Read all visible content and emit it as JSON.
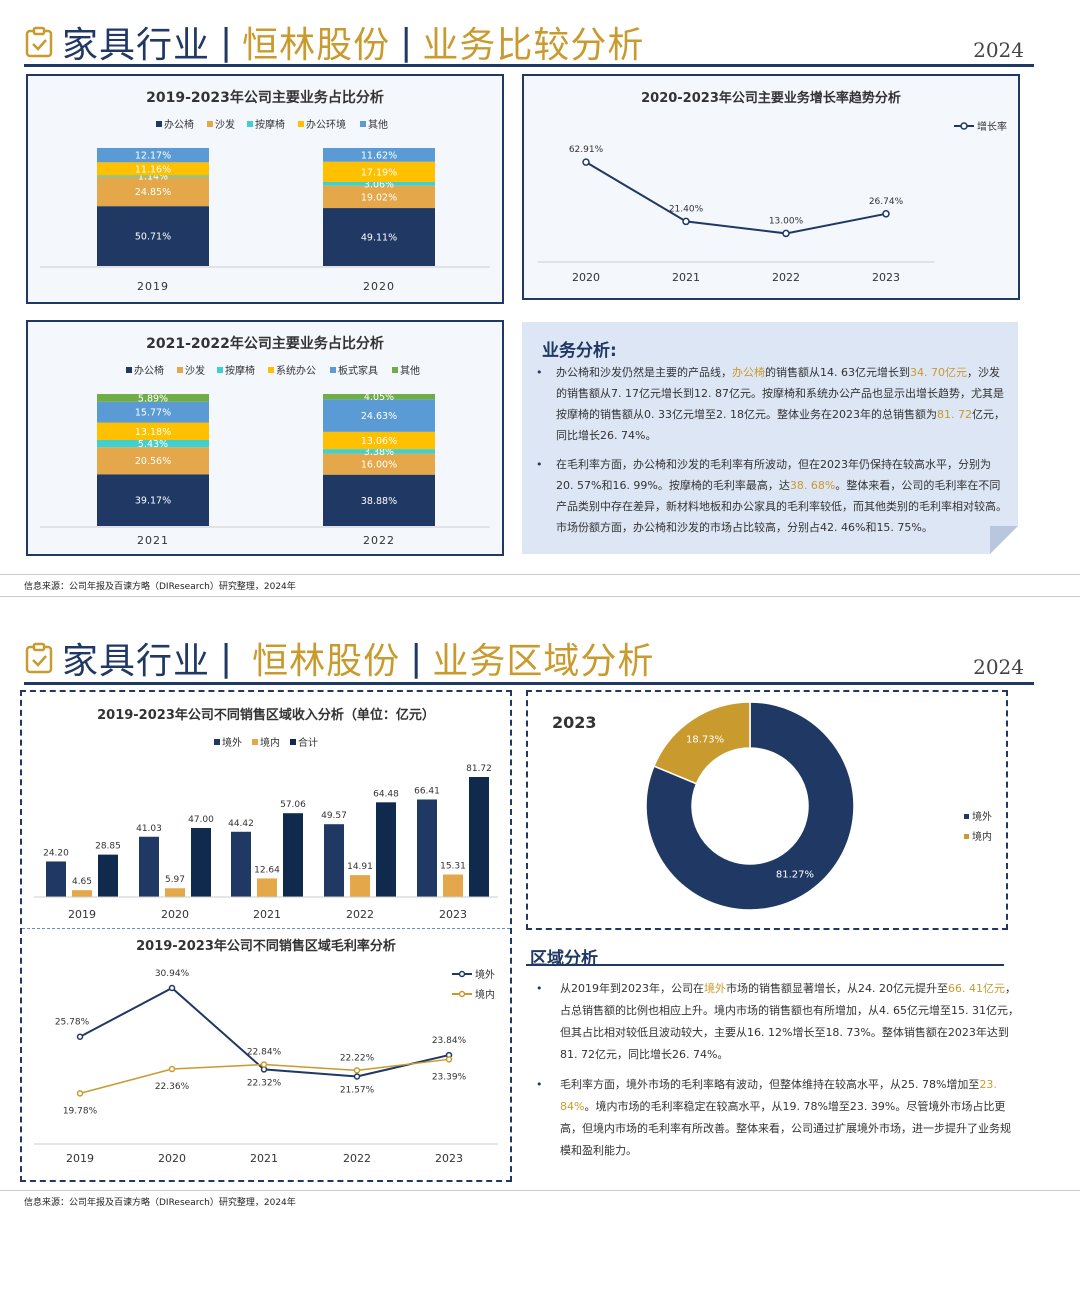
{
  "page1": {
    "title_main": "家具行业",
    "title_sep1": "|",
    "title_company": "恒林股份",
    "title_sep2": "|",
    "title_topic": "业务比较分析",
    "year": "2024"
  },
  "page2": {
    "title_main": "家具行业",
    "title_sep1": "|",
    "title_company": "恒林股份",
    "title_sep2": "|",
    "title_topic": "业务区域分析",
    "year": "2024"
  },
  "colors": {
    "navy": "#1f3864",
    "gold": "#c99a2e",
    "light_blue": "#5b9bd5",
    "yellow": "#ffc000",
    "cyan": "#3fd1d1",
    "green": "#70ad47",
    "dark_navy": "#0f2a4d",
    "orange_bar": "#e4a84a"
  },
  "chart_data": [
    {
      "id": "biz_share_2019_2020",
      "type": "bar",
      "stacked": true,
      "title": "2019-2023年公司主要业务占比分析",
      "categories": [
        "2019",
        "2020"
      ],
      "series": [
        {
          "name": "办公椅",
          "values": [
            50.71,
            49.11
          ],
          "labels": [
            "50.71%",
            "49.11%"
          ]
        },
        {
          "name": "沙发",
          "values": [
            24.85,
            19.02
          ],
          "labels": [
            "24.85%",
            "19.02%"
          ]
        },
        {
          "name": "按摩椅",
          "values": [
            1.14,
            3.06
          ],
          "labels": [
            "1.14%",
            "3.06%"
          ]
        },
        {
          "name": "办公环境",
          "values": [
            11.16,
            17.19
          ],
          "labels": [
            "11.16%",
            "17.19%"
          ]
        },
        {
          "name": "其他",
          "values": [
            12.17,
            11.62
          ],
          "labels": [
            "12.17%",
            "11.62%"
          ]
        }
      ],
      "legend": "top"
    },
    {
      "id": "growth_trend",
      "type": "line",
      "title": "2020-2023年公司主要业务增长率趋势分析",
      "x": [
        "2020",
        "2021",
        "2022",
        "2023"
      ],
      "series": [
        {
          "name": "增长率",
          "values": [
            62.91,
            21.4,
            13.0,
            26.74
          ],
          "labels": [
            "62.91%",
            "21.40%",
            "13.00%",
            "26.74%"
          ]
        }
      ],
      "legend": "top-right"
    },
    {
      "id": "biz_share_2021_2022",
      "type": "bar",
      "stacked": true,
      "title": "2021-2022年公司主要业务占比分析",
      "categories": [
        "2021",
        "2022"
      ],
      "series": [
        {
          "name": "办公椅",
          "values": [
            39.17,
            38.88
          ],
          "labels": [
            "39.17%",
            "38.88%"
          ]
        },
        {
          "name": "沙发",
          "values": [
            20.56,
            16.0
          ],
          "labels": [
            "20.56%",
            "16.00%"
          ]
        },
        {
          "name": "按摩椅",
          "values": [
            5.43,
            3.38
          ],
          "labels": [
            "5.43%",
            "3.38%"
          ]
        },
        {
          "name": "系统办公",
          "values": [
            13.18,
            13.06
          ],
          "labels": [
            "13.18%",
            "13.06%"
          ]
        },
        {
          "name": "板式家具",
          "values": [
            15.77,
            24.63
          ],
          "labels": [
            "15.77%",
            "24.63%"
          ]
        },
        {
          "name": "其他",
          "values": [
            5.89,
            4.05
          ],
          "labels": [
            "5.89%",
            "4.05%"
          ]
        }
      ],
      "legend": "top"
    },
    {
      "id": "region_revenue",
      "type": "bar",
      "title": "2019-2023年公司不同销售区域收入分析（单位：亿元）",
      "categories": [
        "2019",
        "2020",
        "2021",
        "2022",
        "2023"
      ],
      "series": [
        {
          "name": "境外",
          "values": [
            24.2,
            41.03,
            44.42,
            49.57,
            66.41
          ],
          "labels": [
            "24.20",
            "41.03",
            "44.42",
            "49.57",
            "66.41"
          ]
        },
        {
          "name": "境内",
          "values": [
            4.65,
            5.97,
            12.64,
            14.91,
            15.31
          ],
          "labels": [
            "4.65",
            "5.97",
            "12.64",
            "14.91",
            "15.31"
          ]
        },
        {
          "name": "合计",
          "values": [
            28.85,
            47.0,
            57.06,
            64.48,
            81.72
          ],
          "labels": [
            "28.85",
            "47.00",
            "57.06",
            "64.48",
            "81.72"
          ]
        }
      ],
      "legend": "top"
    },
    {
      "id": "region_margin",
      "type": "line",
      "title": "2019-2023年公司不同销售区域毛利率分析",
      "x": [
        "2019",
        "2020",
        "2021",
        "2022",
        "2023"
      ],
      "series": [
        {
          "name": "境外",
          "values": [
            25.78,
            30.94,
            22.32,
            21.57,
            23.84
          ],
          "labels": [
            "25.78%",
            "30.94%",
            "22.32%",
            "21.57%",
            "23.84%"
          ]
        },
        {
          "name": "境内",
          "values": [
            19.78,
            22.36,
            22.84,
            22.22,
            23.39
          ],
          "labels": [
            "19.78%",
            "22.36%",
            "22.84%",
            "22.22%",
            "23.39%"
          ]
        }
      ],
      "legend": "top-right"
    },
    {
      "id": "region_pie_2023",
      "type": "pie",
      "title": "2023",
      "series": [
        {
          "name": "境外",
          "value": 81.27,
          "label": "81.27%"
        },
        {
          "name": "境内",
          "value": 18.73,
          "label": "18.73%"
        }
      ],
      "legend": "right"
    }
  ],
  "analysis1": {
    "heading": "业务分析:",
    "p1": [
      {
        "t": "办公椅和沙发仍然是主要的产品线，"
      },
      {
        "t": "办公椅",
        "hl": true
      },
      {
        "t": "的销售额从14. 63亿元增长到"
      },
      {
        "t": "34. 70亿元",
        "hl": true
      },
      {
        "t": "，沙发的销售额从7. 17亿元增长到12. 87亿元。按摩椅和系统办公产品也显示出增长趋势，尤其是按摩椅的销售额从0. 33亿元增至2. 18亿元。整体业务在2023年的总销售额为"
      },
      {
        "t": "81. 72",
        "hl": true
      },
      {
        "t": "亿元，同比增长26. 74%。"
      }
    ],
    "p2": [
      {
        "t": "在毛利率方面，办公椅和沙发的毛利率有所波动，但在2023年仍保持在较高水平，分别为20. 57%和16. 99%。按摩椅的毛利率最高，达"
      },
      {
        "t": "38. 68%",
        "hl": true
      },
      {
        "t": "。整体来看，公司的毛利率在不同产品类别中存在差异，新材料地板和办公家具的毛利率较低，而其他类别的毛利率相对较高。市场份额方面，办公椅和沙发的市场占比较高，分别占42. 46%和15. 75%。"
      }
    ]
  },
  "analysis2": {
    "heading": "区域分析",
    "p1": [
      {
        "t": "从2019年到2023年，公司在"
      },
      {
        "t": "境外",
        "hl": true
      },
      {
        "t": "市场的销售额显著增长，从24. 20亿元提升至"
      },
      {
        "t": "66. 41亿元",
        "hl": true
      },
      {
        "t": "，占总销售额的比例也相应上升。境内市场的销售额也有所增加，从4. 65亿元增至15. 31亿元，但其占比相对较低且波动较大，主要从16. 12%增长至18. 73%。整体销售额在2023年达到81. 72亿元，同比增长26. 74%。"
      }
    ],
    "p2": [
      {
        "t": "毛利率方面，境外市场的毛利率略有波动，但整体维持在较高水平，从25. 78%增加至"
      },
      {
        "t": "23. 84%",
        "hl": true
      },
      {
        "t": "。境内市场的毛利率稳定在较高水平，从19. 78%增至23. 39%。尽管境外市场占比更高，但境内市场的毛利率有所改善。整体来看，公司通过扩展境外市场，进一步提升了业务规模和盈利能力。"
      }
    ]
  },
  "source": "信息来源：公司年报及百谏方略（DIResearch）研究整理，2024年"
}
